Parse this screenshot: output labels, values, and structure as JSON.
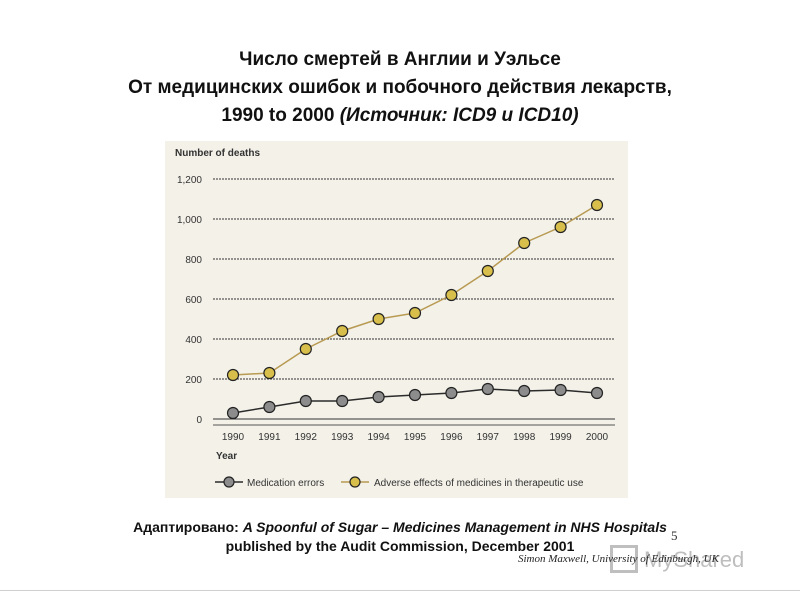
{
  "slide": {
    "title_line1": "Число смертей в Англии и Уэльсе",
    "title_line2": "От медицинских ошибок и побочного действия лекарств,",
    "title_line3_prefix": "1990 to 2000 ",
    "title_line3_italic": "(Источник: ICD9 и ICD10)",
    "source_label": "Адаптировано: ",
    "source_italic": "A Spoonful of Sugar – Medicines Management in NHS Hospitals",
    "source_line2": "published by the Audit Commission, December 2001",
    "page_number": "5",
    "credit": "Simon Maxwell, University of Edinburgh, UK",
    "logo_text": "MyShared"
  },
  "colors": {
    "panel_bg": "#f3f1e8",
    "medication_fill": "#8c8c8c",
    "medication_line": "#2b2b2b",
    "adverse_fill": "#d8bf4c",
    "adverse_line": "#b89a52",
    "grid": "#333333"
  },
  "chart_data": {
    "type": "line",
    "title": "",
    "ylabel": "Number of deaths",
    "xlabel": "Year",
    "ylim": [
      0,
      1200
    ],
    "yticks": [
      0,
      200,
      400,
      600,
      800,
      1000,
      1200
    ],
    "ytick_labels": [
      "0",
      "200",
      "400",
      "600",
      "800",
      "1,000",
      "1,200"
    ],
    "categories": [
      "1990",
      "1991",
      "1992",
      "1993",
      "1994",
      "1995",
      "1996",
      "1997",
      "1998",
      "1999",
      "2000"
    ],
    "series": [
      {
        "name": "Medication errors",
        "color": "#8c8c8c",
        "values": [
          30,
          60,
          90,
          90,
          110,
          120,
          130,
          150,
          140,
          145,
          130
        ]
      },
      {
        "name": "Adverse effects of medicines in therapeutic use",
        "color": "#d8bf4c",
        "values": [
          220,
          230,
          350,
          440,
          500,
          530,
          620,
          740,
          880,
          960,
          1070
        ]
      }
    ],
    "grid": true,
    "legend": "bottom"
  }
}
